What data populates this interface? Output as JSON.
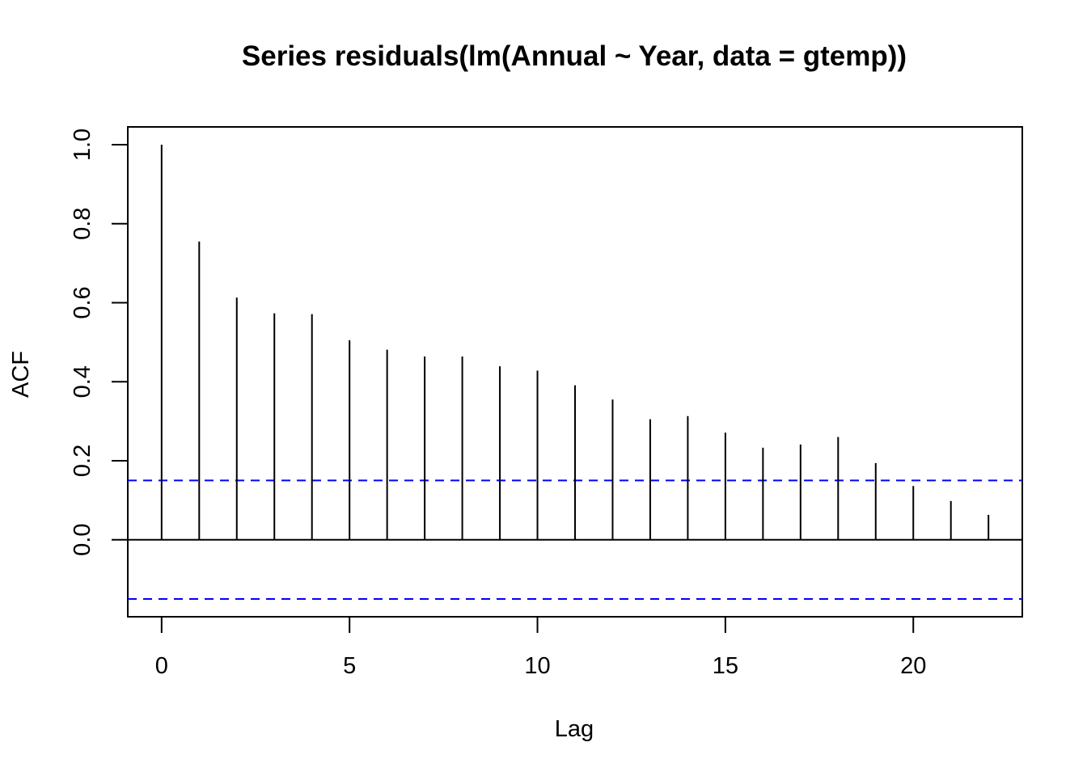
{
  "chart_data": {
    "type": "bar",
    "title": "Series  residuals(lm(Annual ~ Year, data = gtemp))",
    "xlabel": "Lag",
    "ylabel": "ACF",
    "xlim": [
      -0.9,
      22.9
    ],
    "ylim": [
      -0.195,
      1.045
    ],
    "x_ticks": [
      0,
      5,
      10,
      15,
      20
    ],
    "x_tick_labels": [
      "0",
      "5",
      "10",
      "15",
      "20"
    ],
    "y_ticks": [
      0.0,
      0.2,
      0.4,
      0.6,
      0.8,
      1.0
    ],
    "y_tick_labels": [
      "0.0",
      "0.2",
      "0.4",
      "0.6",
      "0.8",
      "1.0"
    ],
    "lags": [
      0,
      1,
      2,
      3,
      4,
      5,
      6,
      7,
      8,
      9,
      10,
      11,
      12,
      13,
      14,
      15,
      16,
      17,
      18,
      19,
      20,
      21,
      22
    ],
    "acf": [
      1.0,
      0.755,
      0.613,
      0.573,
      0.571,
      0.505,
      0.481,
      0.464,
      0.464,
      0.439,
      0.428,
      0.391,
      0.355,
      0.305,
      0.313,
      0.271,
      0.233,
      0.241,
      0.26,
      0.194,
      0.136,
      0.098,
      0.063
    ],
    "confidence_bound": 0.15,
    "confidence_color": "#0000ff",
    "bar_color": "#000000",
    "grid": false
  }
}
